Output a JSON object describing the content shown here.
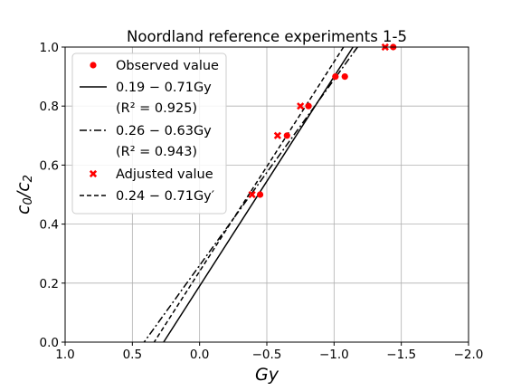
{
  "chart_data": {
    "type": "scatter",
    "title": "Noordland reference experiments 1-5",
    "xlabel": "Gy",
    "ylabel": "c0/c2",
    "xlim": [
      1.0,
      -2.0
    ],
    "ylim": [
      0.0,
      1.0
    ],
    "x_ticks": [
      1.0,
      0.5,
      0.0,
      -0.5,
      -1.0,
      -1.5,
      -2.0
    ],
    "x_tick_labels": [
      "1.0",
      "0.5",
      "0.0",
      "−0.5",
      "−1.0",
      "−1.5",
      "−2.0"
    ],
    "y_ticks": [
      0.0,
      0.2,
      0.4,
      0.6,
      0.8,
      1.0
    ],
    "y_tick_labels": [
      "0.0",
      "0.2",
      "0.4",
      "0.6",
      "0.8",
      "1.0"
    ],
    "grid": true,
    "legend_position": "top-left",
    "series": [
      {
        "name": "Observed value",
        "kind": "points",
        "marker": "circle",
        "color": "#ff0000",
        "points": [
          [
            -0.45,
            0.5
          ],
          [
            -0.65,
            0.7
          ],
          [
            -0.81,
            0.8
          ],
          [
            -1.01,
            0.9
          ],
          [
            -1.08,
            0.9
          ],
          [
            -1.44,
            1.0
          ]
        ]
      },
      {
        "name": "0.19 − 0.71Gy",
        "name_line2": "(R² = 0.925)",
        "kind": "line",
        "style": "solid",
        "color": "#000000",
        "intercept": 0.19,
        "slope": -0.71
      },
      {
        "name": "0.26 − 0.63Gy",
        "name_line2": "(R² = 0.943)",
        "kind": "line",
        "style": "dashdot",
        "color": "#000000",
        "intercept": 0.26,
        "slope": -0.63
      },
      {
        "name": "Adjusted value",
        "kind": "points",
        "marker": "x",
        "color": "#ff0000",
        "points": [
          [
            -0.39,
            0.5
          ],
          [
            -0.58,
            0.7
          ],
          [
            -0.75,
            0.8
          ],
          [
            -1.38,
            1.0
          ]
        ]
      },
      {
        "name": "0.24 − 0.71Gy′",
        "kind": "line",
        "style": "dashed",
        "color": "#000000",
        "intercept": 0.24,
        "slope": -0.71
      }
    ]
  }
}
